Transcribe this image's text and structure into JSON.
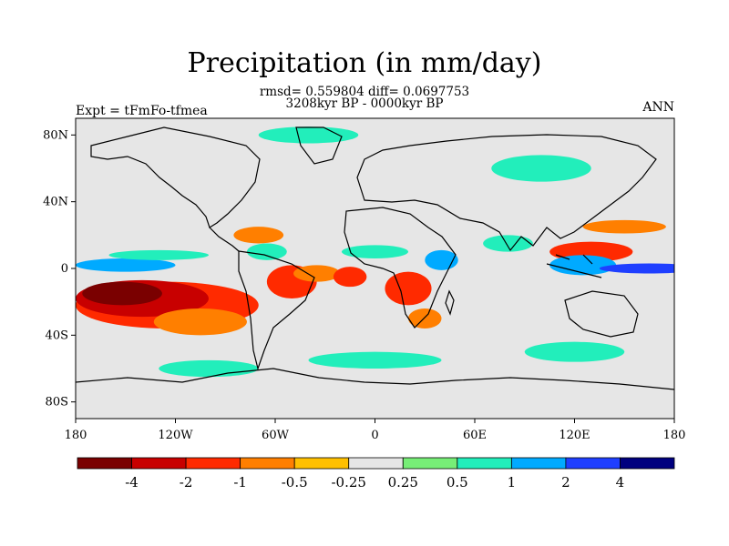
{
  "figure": {
    "title": "Precipitation (in mm/day)",
    "stats_line": "rmsd= 0.559804 diff= 0.0697753",
    "period_line": "3208kyr BP - 0000kyr BP",
    "left_label": "Expt = tFmFo-tfmea",
    "right_label": "ANN"
  },
  "map": {
    "projection": "cylindrical-equidistant",
    "lon_range": [
      -180,
      180
    ],
    "lat_range": [
      -90,
      90
    ],
    "background_color": "#e6e6e6",
    "lat_ticks": [
      {
        "lat": 80,
        "label": "80N"
      },
      {
        "lat": 40,
        "label": "40N"
      },
      {
        "lat": 0,
        "label": "0"
      },
      {
        "lat": -40,
        "label": "40S"
      },
      {
        "lat": -80,
        "label": "80S"
      }
    ],
    "lon_ticks": [
      {
        "lon": -180,
        "label": "180"
      },
      {
        "lon": -120,
        "label": "120W"
      },
      {
        "lon": -60,
        "label": "60W"
      },
      {
        "lon": 0,
        "label": "0"
      },
      {
        "lon": 60,
        "label": "60E"
      },
      {
        "lon": 120,
        "label": "120E"
      },
      {
        "lon": 180,
        "label": "180"
      }
    ],
    "anomaly_regions": [
      {
        "lon": -152,
        "lat": -15,
        "rlon": 24,
        "rlat": 7,
        "level": "-4"
      },
      {
        "lon": -140,
        "lat": -18,
        "rlon": 40,
        "rlat": 11,
        "level": "-2"
      },
      {
        "lon": -125,
        "lat": -22,
        "rlon": 55,
        "rlat": 14,
        "level": "-1"
      },
      {
        "lon": -105,
        "lat": -32,
        "rlon": 28,
        "rlat": 8,
        "level": "-0.5"
      },
      {
        "lon": -150,
        "lat": 2,
        "rlon": 30,
        "rlat": 4,
        "level": "1"
      },
      {
        "lon": -130,
        "lat": 8,
        "rlon": 30,
        "rlat": 3,
        "level": "0.5"
      },
      {
        "lon": -65,
        "lat": 10,
        "rlon": 12,
        "rlat": 5,
        "level": "0.5"
      },
      {
        "lon": -50,
        "lat": -8,
        "rlon": 15,
        "rlat": 10,
        "level": "-1"
      },
      {
        "lon": -35,
        "lat": -3,
        "rlon": 14,
        "rlat": 5,
        "level": "-0.5"
      },
      {
        "lon": -70,
        "lat": 20,
        "rlon": 15,
        "rlat": 5,
        "level": "-0.5"
      },
      {
        "lon": -15,
        "lat": -5,
        "rlon": 10,
        "rlat": 6,
        "level": "-1"
      },
      {
        "lon": 20,
        "lat": -12,
        "rlon": 14,
        "rlat": 10,
        "level": "-1"
      },
      {
        "lon": 30,
        "lat": -30,
        "rlon": 10,
        "rlat": 6,
        "level": "-0.5"
      },
      {
        "lon": 40,
        "lat": 5,
        "rlon": 10,
        "rlat": 6,
        "level": "1"
      },
      {
        "lon": 0,
        "lat": 10,
        "rlon": 20,
        "rlat": 4,
        "level": "0.5"
      },
      {
        "lon": 80,
        "lat": 15,
        "rlon": 15,
        "rlat": 5,
        "level": "0.5"
      },
      {
        "lon": 130,
        "lat": 10,
        "rlon": 25,
        "rlat": 6,
        "level": "-1"
      },
      {
        "lon": 125,
        "lat": 2,
        "rlon": 20,
        "rlat": 6,
        "level": "1"
      },
      {
        "lon": 165,
        "lat": 0,
        "rlon": 30,
        "rlat": 3,
        "level": "2"
      },
      {
        "lon": 150,
        "lat": 25,
        "rlon": 25,
        "rlat": 4,
        "level": "-0.5"
      },
      {
        "lon": 100,
        "lat": 60,
        "rlon": 30,
        "rlat": 8,
        "level": "0.5"
      },
      {
        "lon": -40,
        "lat": 80,
        "rlon": 30,
        "rlat": 5,
        "level": "0.5"
      },
      {
        "lon": 0,
        "lat": -55,
        "rlon": 40,
        "rlat": 5,
        "level": "0.5"
      },
      {
        "lon": -100,
        "lat": -60,
        "rlon": 30,
        "rlat": 5,
        "level": "0.5"
      },
      {
        "lon": 120,
        "lat": -50,
        "rlon": 30,
        "rlat": 6,
        "level": "0.5"
      }
    ]
  },
  "colorbar": {
    "colors": [
      "#7a0000",
      "#c80000",
      "#ff2a00",
      "#ff7f00",
      "#ffc000",
      "#e6e6e6",
      "#77ee77",
      "#22eebb",
      "#00aaff",
      "#1f3fff",
      "#00007f"
    ],
    "labels": [
      "-4",
      "-2",
      "-1",
      "-0.5",
      "-0.25",
      "0.25",
      "0.5",
      "1",
      "2",
      "4"
    ]
  }
}
